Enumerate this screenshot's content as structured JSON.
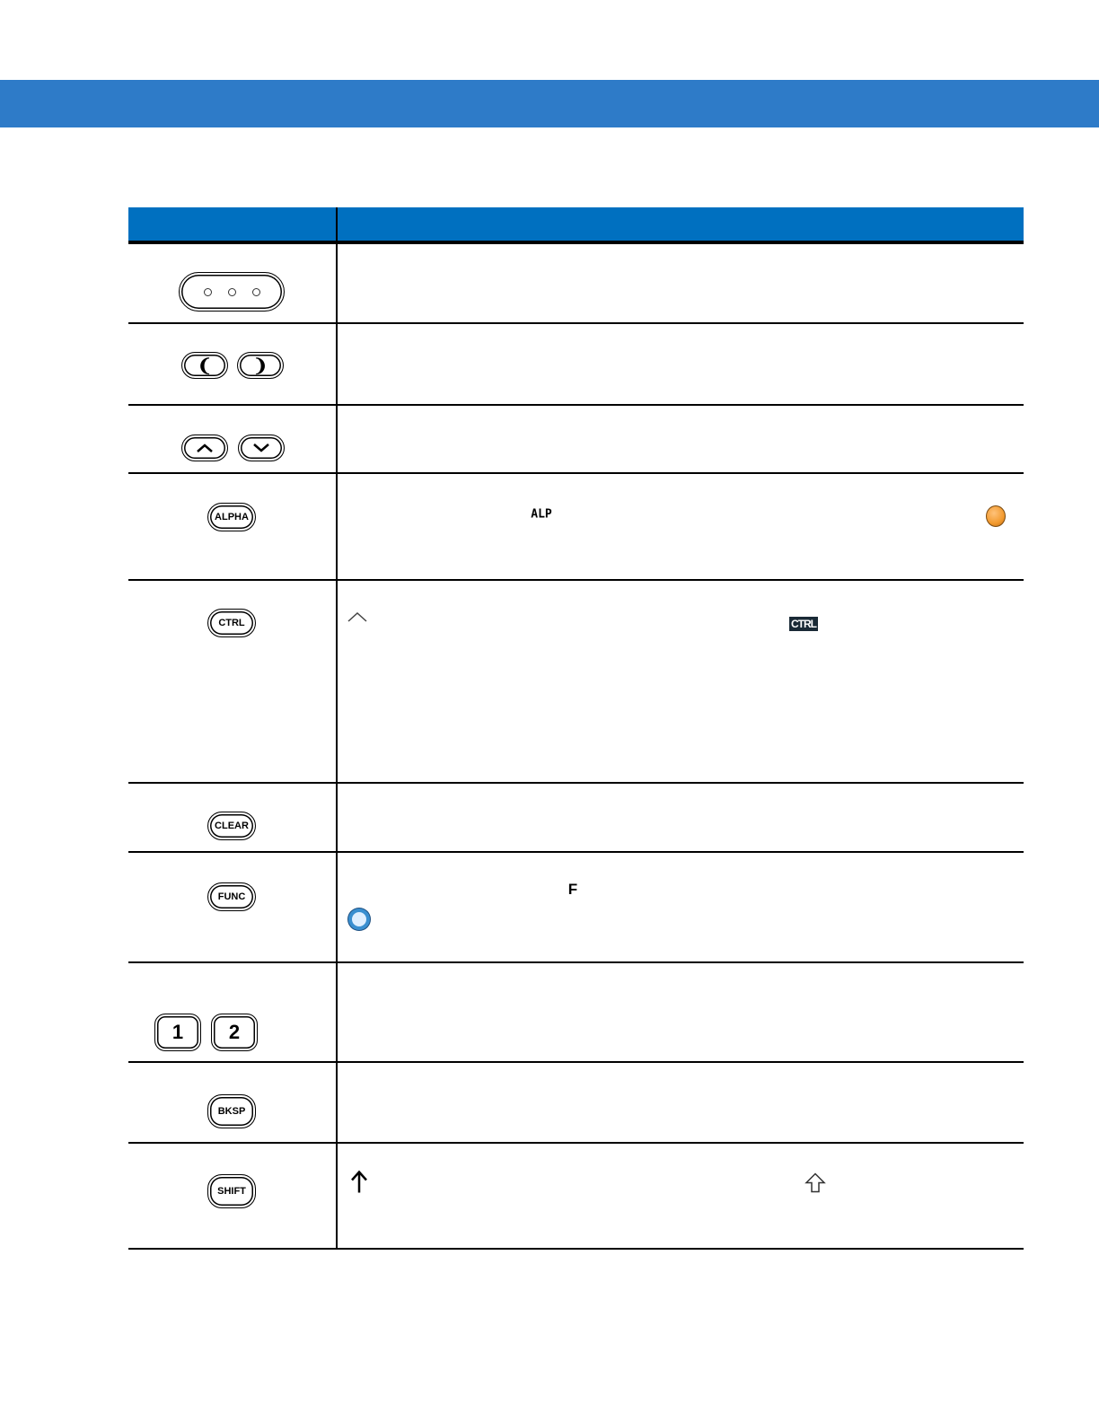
{
  "keys": {
    "alpha": "ALPHA",
    "ctrl": "CTRL",
    "clear": "CLEAR",
    "func": "FUNC",
    "one": "1",
    "two": "2",
    "bksp": "BKSP",
    "shift": "SHIFT"
  },
  "inline_icons": {
    "alp_indicator": "ALP",
    "ctrl_indicator": "CTRL",
    "func_indicator": "F"
  },
  "colors": {
    "banner": "#2e7bc8",
    "table_header": "#0070c0",
    "alpha_led": "#f29a2e",
    "func_led": "#3a8fd0"
  }
}
